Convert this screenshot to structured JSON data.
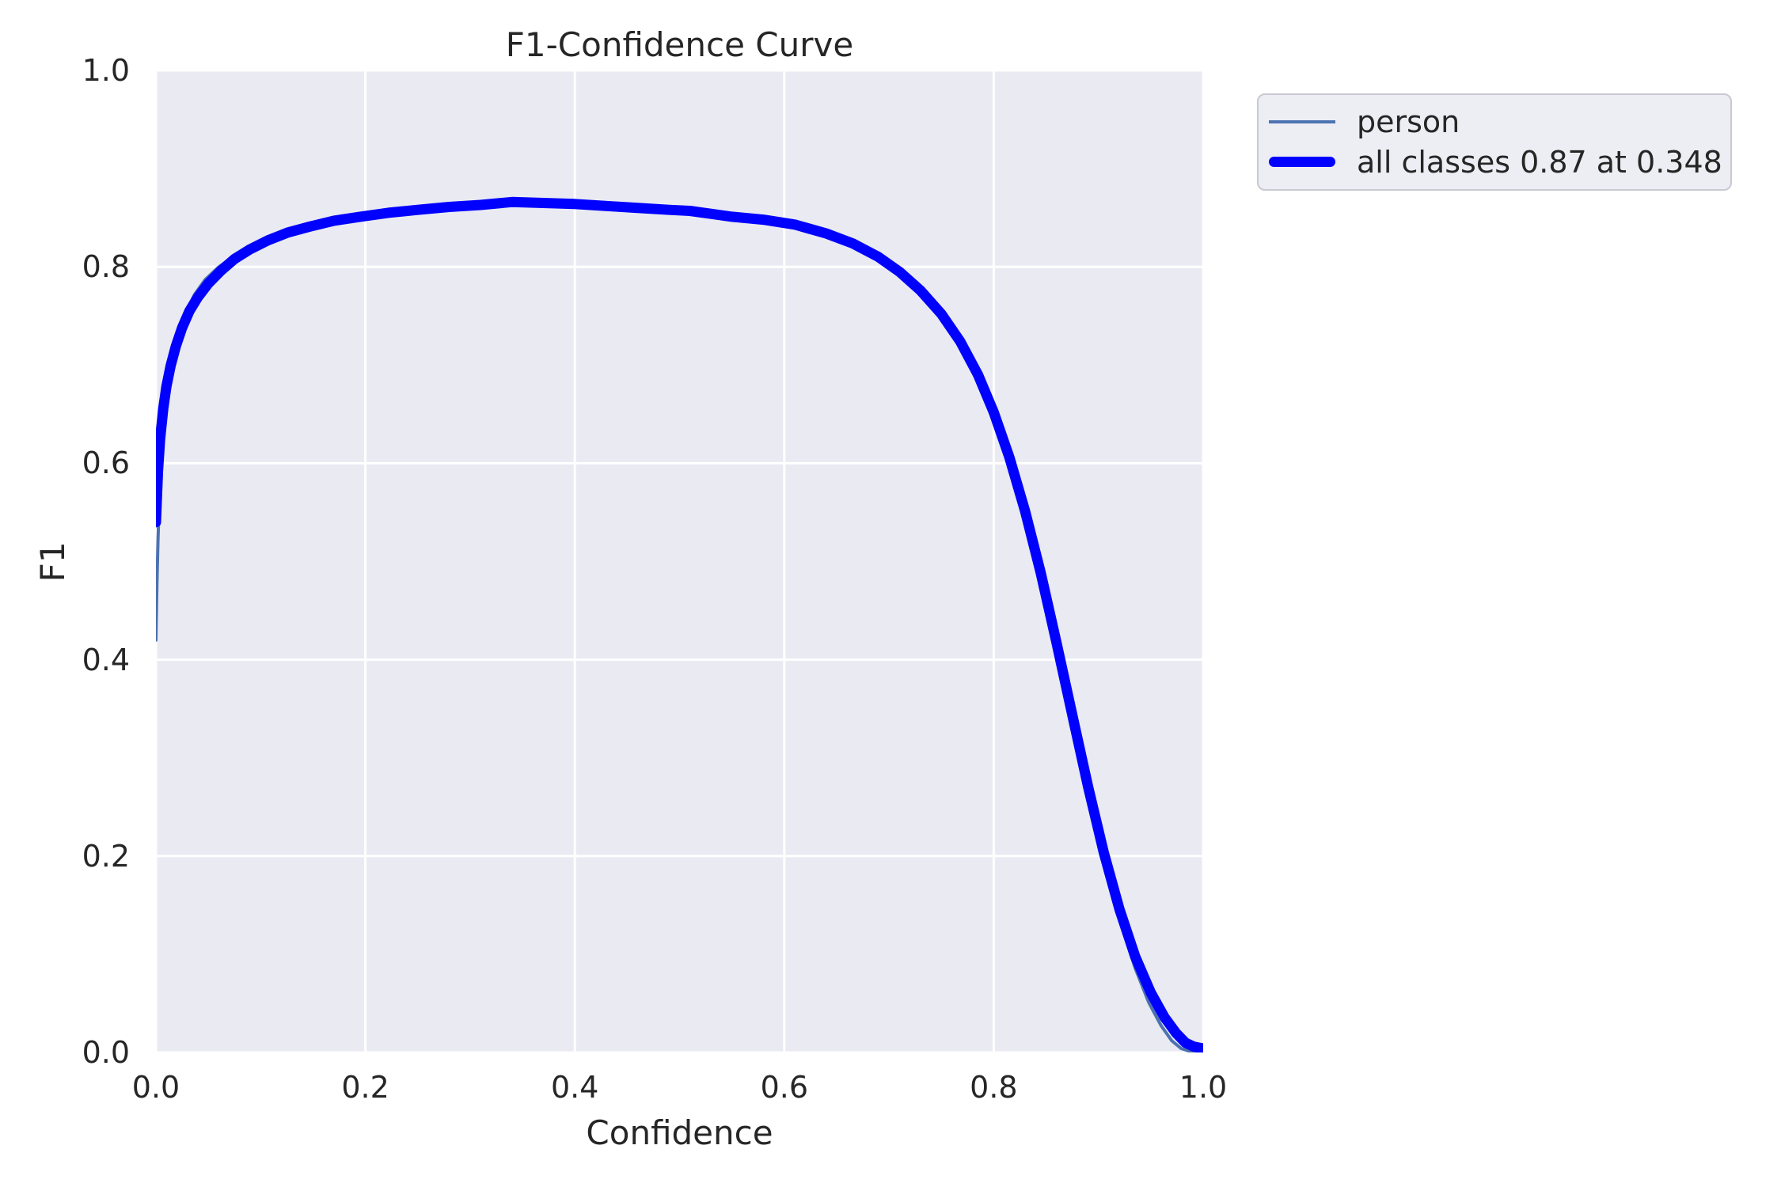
{
  "figure": {
    "background": "#ffffff",
    "text_color": "#262626"
  },
  "chart_data": {
    "type": "line",
    "title": "F1-Confidence Curve",
    "xlabel": "Confidence",
    "ylabel": "F1",
    "xlim": [
      0.0,
      1.0
    ],
    "ylim": [
      0.0,
      1.0
    ],
    "x_tick_labels": [
      "0.0",
      "0.2",
      "0.4",
      "0.6",
      "0.8",
      "1.0"
    ],
    "y_tick_labels": [
      "0.0",
      "0.2",
      "0.4",
      "0.6",
      "0.8",
      "1.0"
    ],
    "x_tick_values": [
      0.0,
      0.2,
      0.4,
      0.6,
      0.8,
      1.0
    ],
    "y_tick_values": [
      0.0,
      0.2,
      0.4,
      0.6,
      0.8,
      1.0
    ],
    "grid": true,
    "grid_color": "#ffffff",
    "axes_background": "#eaeaf2",
    "legend_position": "outside upper right",
    "best": {
      "f1": 0.87,
      "confidence": 0.348
    },
    "series": [
      {
        "name": "person",
        "color": "#4c72b0",
        "linewidth": 4,
        "points": [
          [
            0.0,
            0.42
          ],
          [
            0.001,
            0.478
          ],
          [
            0.002,
            0.522
          ],
          [
            0.003,
            0.556
          ],
          [
            0.005,
            0.598
          ],
          [
            0.007,
            0.63
          ],
          [
            0.01,
            0.662
          ],
          [
            0.013,
            0.688
          ],
          [
            0.017,
            0.712
          ],
          [
            0.022,
            0.734
          ],
          [
            0.029,
            0.755
          ],
          [
            0.037,
            0.772
          ],
          [
            0.047,
            0.787
          ],
          [
            0.059,
            0.799
          ],
          [
            0.073,
            0.81
          ],
          [
            0.089,
            0.819
          ],
          [
            0.107,
            0.828
          ],
          [
            0.126,
            0.835
          ],
          [
            0.147,
            0.841
          ],
          [
            0.17,
            0.847
          ],
          [
            0.195,
            0.851
          ],
          [
            0.222,
            0.855
          ],
          [
            0.25,
            0.858
          ],
          [
            0.28,
            0.861
          ],
          [
            0.31,
            0.863
          ],
          [
            0.34,
            0.866
          ],
          [
            0.37,
            0.865
          ],
          [
            0.4,
            0.864
          ],
          [
            0.43,
            0.862
          ],
          [
            0.46,
            0.86
          ],
          [
            0.49,
            0.858
          ],
          [
            0.51,
            0.857
          ],
          [
            0.53,
            0.854
          ],
          [
            0.55,
            0.851
          ],
          [
            0.58,
            0.848
          ],
          [
            0.61,
            0.843
          ],
          [
            0.64,
            0.834
          ],
          [
            0.665,
            0.824
          ],
          [
            0.69,
            0.81
          ],
          [
            0.71,
            0.795
          ],
          [
            0.73,
            0.776
          ],
          [
            0.75,
            0.752
          ],
          [
            0.768,
            0.724
          ],
          [
            0.785,
            0.69
          ],
          [
            0.8,
            0.652
          ],
          [
            0.815,
            0.606
          ],
          [
            0.83,
            0.551
          ],
          [
            0.845,
            0.488
          ],
          [
            0.86,
            0.417
          ],
          [
            0.875,
            0.344
          ],
          [
            0.89,
            0.27
          ],
          [
            0.905,
            0.198
          ],
          [
            0.92,
            0.136
          ],
          [
            0.935,
            0.086
          ],
          [
            0.948,
            0.051
          ],
          [
            0.96,
            0.027
          ],
          [
            0.97,
            0.012
          ],
          [
            0.979,
            0.004
          ],
          [
            0.988,
            0.001
          ],
          [
            1.0,
            0.0
          ]
        ]
      },
      {
        "name": "all classes 0.87 at 0.348",
        "color": "#0000ff",
        "linewidth": 13,
        "points": [
          [
            0.0,
            0.54
          ],
          [
            0.002,
            0.592
          ],
          [
            0.004,
            0.625
          ],
          [
            0.007,
            0.656
          ],
          [
            0.01,
            0.678
          ],
          [
            0.014,
            0.699
          ],
          [
            0.019,
            0.719
          ],
          [
            0.025,
            0.738
          ],
          [
            0.032,
            0.755
          ],
          [
            0.04,
            0.769
          ],
          [
            0.05,
            0.783
          ],
          [
            0.062,
            0.796
          ],
          [
            0.075,
            0.808
          ],
          [
            0.09,
            0.818
          ],
          [
            0.107,
            0.827
          ],
          [
            0.126,
            0.835
          ],
          [
            0.147,
            0.841
          ],
          [
            0.17,
            0.847
          ],
          [
            0.195,
            0.851
          ],
          [
            0.222,
            0.855
          ],
          [
            0.25,
            0.858
          ],
          [
            0.28,
            0.861
          ],
          [
            0.31,
            0.863
          ],
          [
            0.34,
            0.866
          ],
          [
            0.37,
            0.865
          ],
          [
            0.4,
            0.864
          ],
          [
            0.43,
            0.862
          ],
          [
            0.46,
            0.86
          ],
          [
            0.49,
            0.858
          ],
          [
            0.51,
            0.857
          ],
          [
            0.53,
            0.854
          ],
          [
            0.55,
            0.851
          ],
          [
            0.58,
            0.848
          ],
          [
            0.61,
            0.843
          ],
          [
            0.64,
            0.834
          ],
          [
            0.665,
            0.824
          ],
          [
            0.69,
            0.81
          ],
          [
            0.71,
            0.795
          ],
          [
            0.73,
            0.776
          ],
          [
            0.75,
            0.752
          ],
          [
            0.768,
            0.724
          ],
          [
            0.785,
            0.69
          ],
          [
            0.8,
            0.652
          ],
          [
            0.815,
            0.606
          ],
          [
            0.83,
            0.551
          ],
          [
            0.845,
            0.488
          ],
          [
            0.86,
            0.417
          ],
          [
            0.875,
            0.344
          ],
          [
            0.89,
            0.271
          ],
          [
            0.905,
            0.204
          ],
          [
            0.92,
            0.146
          ],
          [
            0.935,
            0.098
          ],
          [
            0.95,
            0.061
          ],
          [
            0.963,
            0.036
          ],
          [
            0.974,
            0.02
          ],
          [
            0.983,
            0.01
          ],
          [
            0.991,
            0.006
          ],
          [
            1.0,
            0.004
          ]
        ]
      }
    ]
  },
  "legend": {
    "items": [
      {
        "label": "person"
      },
      {
        "label": "all classes 0.87 at 0.348"
      }
    ]
  }
}
